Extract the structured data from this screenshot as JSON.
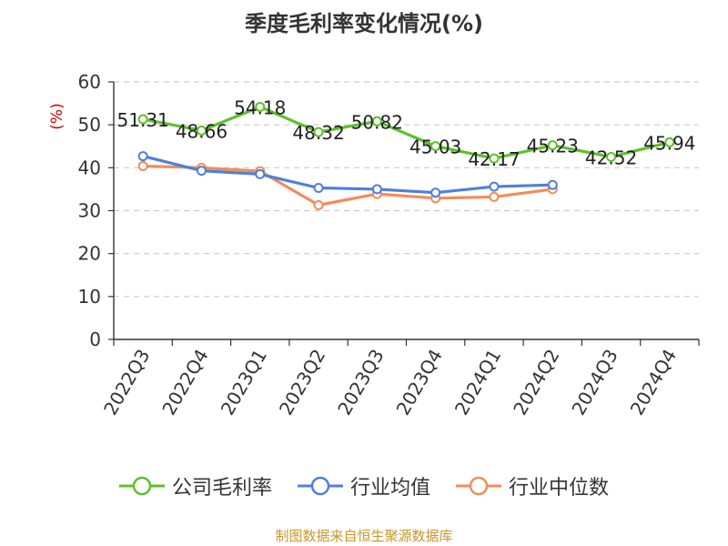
{
  "title": "季度毛利率变化情况(%)",
  "source": "制图数据来自恒生聚源数据库",
  "colors": {
    "company": "#5fbf2c",
    "industry_avg": "#4e7fdc",
    "industry_median": "#f28c5a",
    "grid": "#cccccc",
    "axis": "#333333",
    "unit": "#cc0000"
  },
  "chart_data": {
    "type": "line",
    "title": "季度毛利率变化情况(%)",
    "ylabel": "(%)",
    "xlabel": "",
    "ylim": [
      0,
      60
    ],
    "yticks": [
      0,
      10,
      20,
      30,
      40,
      50,
      60
    ],
    "grid": true,
    "legend_position": "bottom",
    "categories": [
      "2022Q3",
      "2022Q4",
      "2023Q1",
      "2023Q2",
      "2023Q3",
      "2023Q4",
      "2024Q1",
      "2024Q2",
      "2024Q3",
      "2024Q4"
    ],
    "series": [
      {
        "name": "公司毛利率",
        "color": "#5fbf2c",
        "values": [
          51.31,
          48.66,
          54.18,
          48.32,
          50.82,
          45.03,
          42.17,
          45.23,
          42.52,
          45.94
        ],
        "labels": [
          "51.31",
          "48.66",
          "54.18",
          "48.32",
          "50.82",
          "45.03",
          "42.17",
          "45.23",
          "42.52",
          "45.94"
        ]
      },
      {
        "name": "行业均值",
        "color": "#4e7fdc",
        "values": [
          42.7,
          39.3,
          38.5,
          35.3,
          35.0,
          34.2,
          35.6,
          36.0,
          null,
          null
        ]
      },
      {
        "name": "行业中位数",
        "color": "#f28c5a",
        "values": [
          40.4,
          40.0,
          39.2,
          31.3,
          33.9,
          32.9,
          33.2,
          35.0,
          null,
          null
        ]
      }
    ]
  }
}
